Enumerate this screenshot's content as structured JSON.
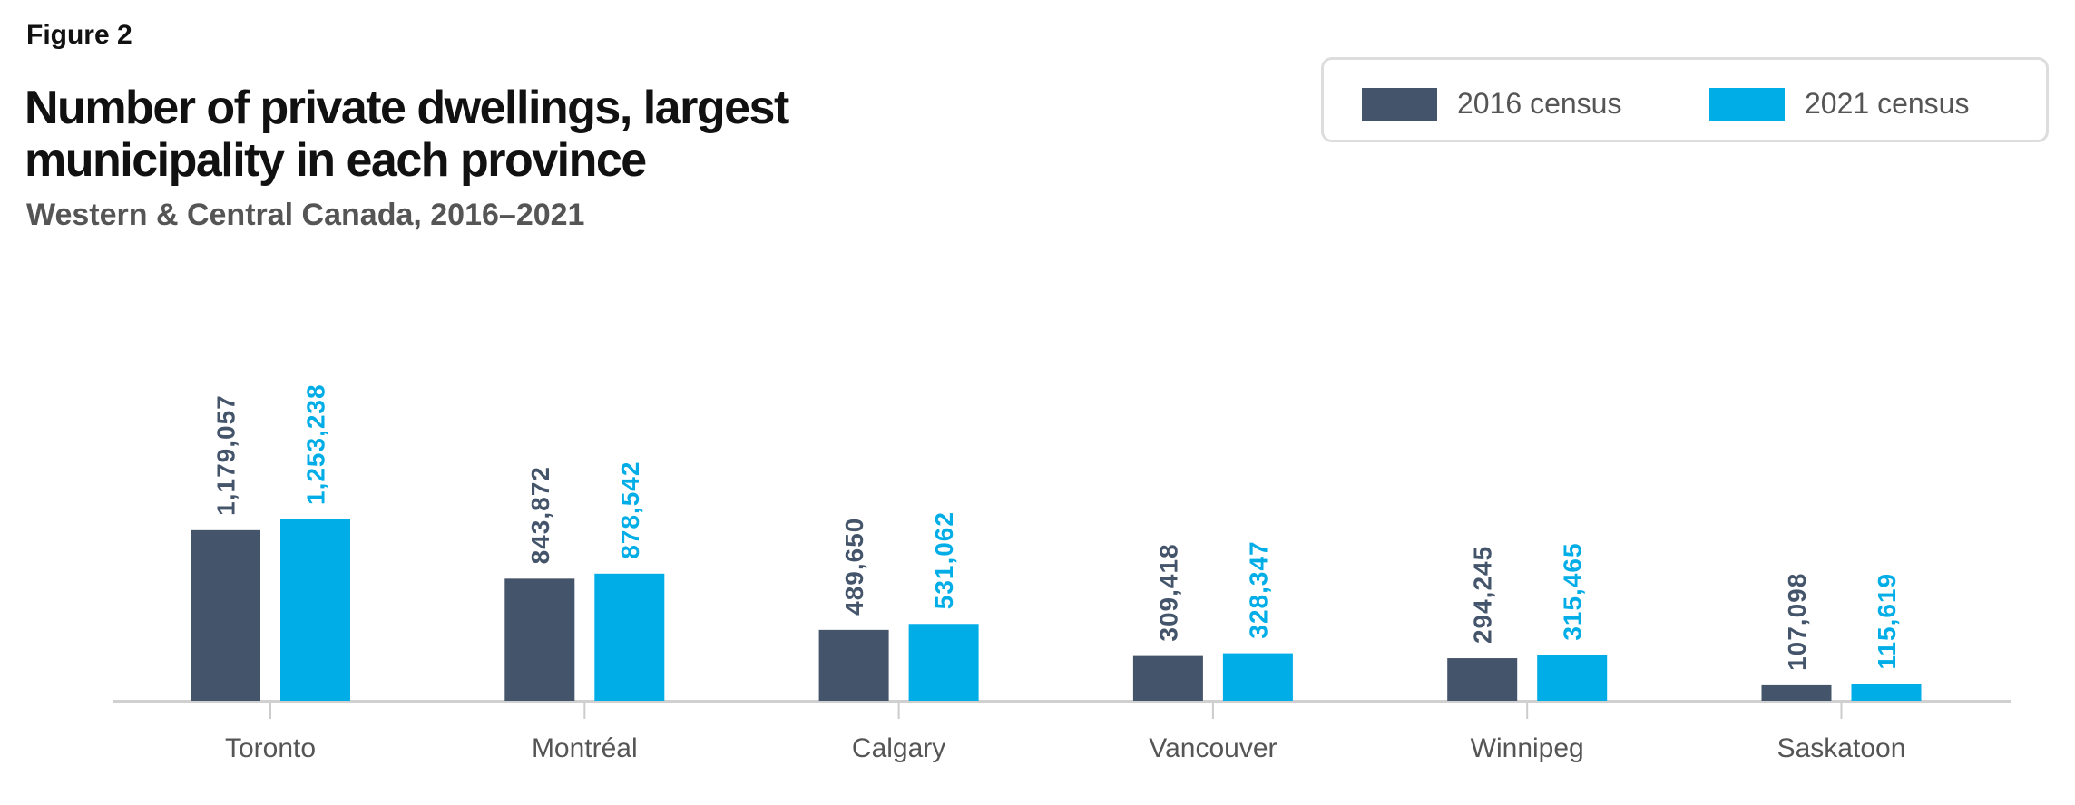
{
  "figure_label": "Figure 2",
  "chart_data": {
    "type": "bar",
    "title": "Number of private dwellings, largest municipality in each province",
    "subtitle": "Western & Central Canada, 2016–2021",
    "categories": [
      "Toronto",
      "Montréal",
      "Calgary",
      "Vancouver",
      "Winnipeg",
      "Saskatoon"
    ],
    "series": [
      {
        "name": "2016 census",
        "color": "#44546a",
        "values": [
          1179057,
          843872,
          489650,
          309418,
          294245,
          107098
        ],
        "labels": [
          "1,179,057",
          "843,872",
          "489,650",
          "309,418",
          "294,245",
          "107,098"
        ]
      },
      {
        "name": "2021 census",
        "color": "#00ade6",
        "values": [
          1253238,
          878542,
          531062,
          328347,
          315465,
          115619
        ],
        "labels": [
          "1,253,238",
          "878,542",
          "531,062",
          "328,347",
          "315,465",
          "115,619"
        ]
      }
    ],
    "xlabel": "",
    "ylabel": "",
    "ylim": [
      0,
      1253238
    ],
    "grid": false,
    "legend": "top-right"
  }
}
